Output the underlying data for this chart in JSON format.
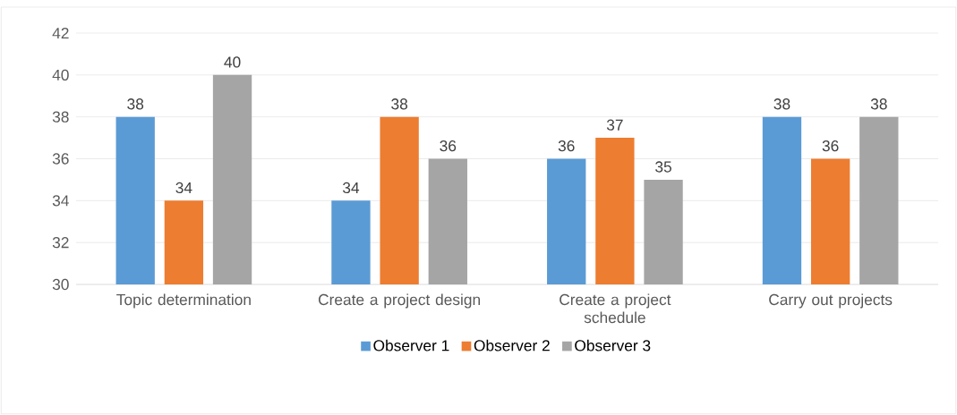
{
  "chart_data": {
    "type": "bar",
    "categories": [
      "Topic determination",
      "Create a project design",
      "Create a project schedule",
      "Carry out projects"
    ],
    "series": [
      {
        "name": "Observer 1",
        "color": "#5b9bd5",
        "values": [
          38,
          34,
          36,
          38
        ]
      },
      {
        "name": "Observer 2",
        "color": "#ed7d31",
        "values": [
          34,
          38,
          37,
          36
        ]
      },
      {
        "name": "Observer 3",
        "color": "#a5a5a5",
        "values": [
          40,
          36,
          35,
          38
        ]
      }
    ],
    "ylim": [
      30,
      42
    ],
    "yticks": [
      30,
      32,
      34,
      36,
      38,
      40,
      42
    ],
    "grid": "y",
    "legend": "bottom",
    "data_labels": true
  }
}
